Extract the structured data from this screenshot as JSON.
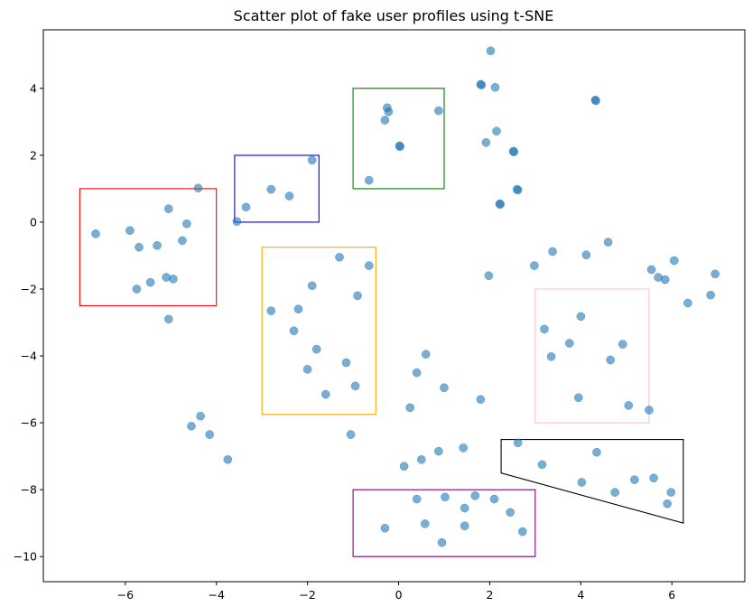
{
  "chart_data": {
    "type": "scatter",
    "title": "Scatter plot of fake user profiles using t-SNE",
    "xlabel": "",
    "ylabel": "",
    "xlim": [
      -7.8,
      7.6
    ],
    "ylim": [
      -10.75,
      5.75
    ],
    "grid": false,
    "xticks": [
      -6,
      -4,
      -2,
      0,
      2,
      4,
      6
    ],
    "yticks": [
      -10,
      -8,
      -6,
      -4,
      -2,
      0,
      2,
      4
    ],
    "xtick_labels": [
      "−6",
      "−4",
      "−2",
      "0",
      "2",
      "4",
      "6"
    ],
    "ytick_labels": [
      "−10",
      "−8",
      "−6",
      "−4",
      "−2",
      "0",
      "2",
      "4"
    ],
    "point_color": "#1f77b4",
    "point_alpha": 0.6,
    "points": [
      {
        "x": -6.65,
        "y": -0.35
      },
      {
        "x": -5.9,
        "y": -0.25
      },
      {
        "x": -5.75,
        "y": -2.0
      },
      {
        "x": -5.7,
        "y": -0.75
      },
      {
        "x": -5.45,
        "y": -1.8
      },
      {
        "x": -5.3,
        "y": -0.7
      },
      {
        "x": -5.1,
        "y": -1.65
      },
      {
        "x": -5.05,
        "y": 0.4
      },
      {
        "x": -5.05,
        "y": -2.9
      },
      {
        "x": -4.95,
        "y": -1.7
      },
      {
        "x": -4.75,
        "y": -0.55
      },
      {
        "x": -4.65,
        "y": -0.05
      },
      {
        "x": -4.4,
        "y": 1.02
      },
      {
        "x": -3.55,
        "y": 0.02
      },
      {
        "x": -3.35,
        "y": 0.45
      },
      {
        "x": -2.8,
        "y": 0.98
      },
      {
        "x": -2.4,
        "y": 0.78
      },
      {
        "x": -1.9,
        "y": 1.85
      },
      {
        "x": -0.65,
        "y": 1.25
      },
      {
        "x": -0.3,
        "y": 3.05
      },
      {
        "x": -0.25,
        "y": 3.42
      },
      {
        "x": -0.22,
        "y": 3.3
      },
      {
        "x": 0.02,
        "y": 2.28
      },
      {
        "x": 0.03,
        "y": 2.26
      },
      {
        "x": 0.88,
        "y": 3.33
      },
      {
        "x": 1.8,
        "y": 4.12
      },
      {
        "x": 1.82,
        "y": 4.1
      },
      {
        "x": 2.02,
        "y": 5.12
      },
      {
        "x": 2.12,
        "y": 4.03
      },
      {
        "x": 1.92,
        "y": 2.38
      },
      {
        "x": 2.15,
        "y": 2.72
      },
      {
        "x": 2.52,
        "y": 2.12
      },
      {
        "x": 2.53,
        "y": 2.1
      },
      {
        "x": 2.6,
        "y": 0.98
      },
      {
        "x": 2.62,
        "y": 0.96
      },
      {
        "x": 2.22,
        "y": 0.55
      },
      {
        "x": 2.23,
        "y": 0.53
      },
      {
        "x": 4.32,
        "y": 3.65
      },
      {
        "x": 4.33,
        "y": 3.63
      },
      {
        "x": -2.8,
        "y": -2.65
      },
      {
        "x": -2.2,
        "y": -2.6
      },
      {
        "x": -2.3,
        "y": -3.25
      },
      {
        "x": -1.9,
        "y": -1.9
      },
      {
        "x": -1.8,
        "y": -3.8
      },
      {
        "x": -2.0,
        "y": -4.4
      },
      {
        "x": -1.6,
        "y": -5.15
      },
      {
        "x": -1.3,
        "y": -1.05
      },
      {
        "x": -1.15,
        "y": -4.2
      },
      {
        "x": -0.95,
        "y": -4.9
      },
      {
        "x": -0.9,
        "y": -2.2
      },
      {
        "x": -0.65,
        "y": -1.3
      },
      {
        "x": -1.05,
        "y": -6.35
      },
      {
        "x": -4.55,
        "y": -6.1
      },
      {
        "x": -4.35,
        "y": -5.8
      },
      {
        "x": -4.15,
        "y": -6.35
      },
      {
        "x": -3.75,
        "y": -7.1
      },
      {
        "x": 0.25,
        "y": -5.55
      },
      {
        "x": 0.4,
        "y": -4.5
      },
      {
        "x": 0.6,
        "y": -3.95
      },
      {
        "x": 1.0,
        "y": -4.95
      },
      {
        "x": 1.8,
        "y": -5.3
      },
      {
        "x": 0.12,
        "y": -7.3
      },
      {
        "x": 0.5,
        "y": -7.1
      },
      {
        "x": 0.88,
        "y": -6.85
      },
      {
        "x": 1.42,
        "y": -6.75
      },
      {
        "x": 1.98,
        "y": -1.6
      },
      {
        "x": 2.98,
        "y": -1.3
      },
      {
        "x": 3.38,
        "y": -0.88
      },
      {
        "x": 4.12,
        "y": -0.98
      },
      {
        "x": 4.6,
        "y": -0.6
      },
      {
        "x": 5.55,
        "y": -1.42
      },
      {
        "x": 5.7,
        "y": -1.65
      },
      {
        "x": 5.85,
        "y": -1.72
      },
      {
        "x": 6.05,
        "y": -1.15
      },
      {
        "x": 6.35,
        "y": -2.42
      },
      {
        "x": 6.85,
        "y": -2.18
      },
      {
        "x": 6.95,
        "y": -1.55
      },
      {
        "x": 3.2,
        "y": -3.2
      },
      {
        "x": 3.35,
        "y": -4.02
      },
      {
        "x": 3.75,
        "y": -3.62
      },
      {
        "x": 4.0,
        "y": -2.82
      },
      {
        "x": 4.65,
        "y": -4.12
      },
      {
        "x": 4.92,
        "y": -3.65
      },
      {
        "x": 3.95,
        "y": -5.25
      },
      {
        "x": 5.05,
        "y": -5.48
      },
      {
        "x": 5.5,
        "y": -5.62
      },
      {
        "x": 2.62,
        "y": -6.6
      },
      {
        "x": 3.15,
        "y": -7.25
      },
      {
        "x": 4.35,
        "y": -6.88
      },
      {
        "x": 4.02,
        "y": -7.78
      },
      {
        "x": 4.75,
        "y": -8.08
      },
      {
        "x": 5.18,
        "y": -7.7
      },
      {
        "x": 5.6,
        "y": -7.65
      },
      {
        "x": 5.98,
        "y": -8.08
      },
      {
        "x": 5.9,
        "y": -8.42
      },
      {
        "x": -0.3,
        "y": -9.15
      },
      {
        "x": 0.4,
        "y": -8.28
      },
      {
        "x": 0.58,
        "y": -9.02
      },
      {
        "x": 0.95,
        "y": -9.58
      },
      {
        "x": 1.02,
        "y": -8.22
      },
      {
        "x": 1.45,
        "y": -8.55
      },
      {
        "x": 1.45,
        "y": -9.08
      },
      {
        "x": 1.68,
        "y": -8.18
      },
      {
        "x": 2.1,
        "y": -8.28
      },
      {
        "x": 2.45,
        "y": -8.68
      },
      {
        "x": 2.72,
        "y": -9.25
      }
    ],
    "regions": [
      {
        "shape": "rect",
        "color": "#ff0000",
        "corners": [
          [
            -7,
            1
          ],
          [
            -4,
            1
          ],
          [
            -4,
            -2.5
          ],
          [
            -7,
            -2.5
          ]
        ]
      },
      {
        "shape": "rect",
        "color": "#0000ff",
        "corners": [
          [
            -3.6,
            2
          ],
          [
            -1.75,
            2
          ],
          [
            -1.75,
            0
          ],
          [
            -3.6,
            0
          ]
        ]
      },
      {
        "shape": "rect",
        "color": "#008000",
        "corners": [
          [
            -1,
            4
          ],
          [
            1,
            4
          ],
          [
            1,
            1
          ],
          [
            -1,
            1
          ]
        ]
      },
      {
        "shape": "rect",
        "color": "#ffa500",
        "corners": [
          [
            -3,
            -0.75
          ],
          [
            -0.5,
            -0.75
          ],
          [
            -0.5,
            -5.75
          ],
          [
            -3,
            -5.75
          ]
        ]
      },
      {
        "shape": "rect",
        "color": "#ffc0cb",
        "corners": [
          [
            3,
            -2
          ],
          [
            5.5,
            -2
          ],
          [
            5.5,
            -6
          ],
          [
            3,
            -6
          ]
        ]
      },
      {
        "shape": "rect",
        "color": "#800080",
        "corners": [
          [
            -1,
            -8
          ],
          [
            3,
            -8
          ],
          [
            3,
            -10
          ],
          [
            -1,
            -10
          ]
        ]
      },
      {
        "shape": "polygon",
        "color": "#000000",
        "corners": [
          [
            2.25,
            -6.5
          ],
          [
            6.25,
            -6.5
          ],
          [
            6.25,
            -9
          ],
          [
            2.25,
            -7.5
          ]
        ]
      }
    ]
  }
}
